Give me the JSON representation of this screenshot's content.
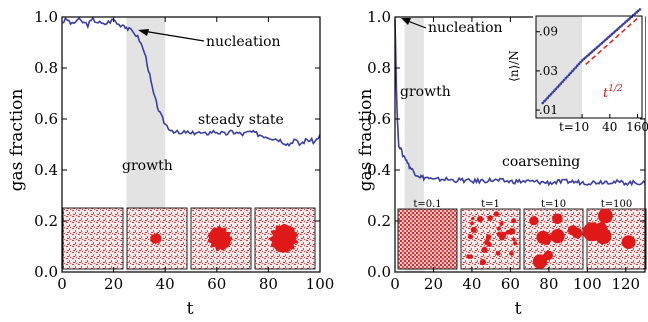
{
  "chart_data": [
    {
      "type": "line",
      "panel": "left",
      "xlabel": "t",
      "ylabel": "gas fraction",
      "xlim": [
        0,
        100
      ],
      "ylim": [
        0,
        1
      ],
      "xticks": [
        "0",
        "20",
        "40",
        "60",
        "80",
        "100"
      ],
      "yticks": [
        "0.0",
        "0.2",
        "0.4",
        "0.6",
        "0.8",
        "1.0"
      ],
      "shaded_region": [
        25,
        40
      ],
      "series": [
        {
          "name": "",
          "x": [
            0,
            2,
            4,
            6,
            8,
            10,
            12,
            14,
            16,
            18,
            20,
            22,
            24,
            25,
            26,
            28,
            30,
            32,
            33,
            34,
            35,
            36,
            37,
            38,
            39,
            40,
            42,
            44,
            46,
            48,
            50,
            52,
            55,
            58,
            60,
            63,
            66,
            70,
            73,
            76,
            80,
            84,
            88,
            90,
            92,
            95,
            98,
            100
          ],
          "y": [
            0.98,
            0.99,
            0.97,
            0.99,
            0.98,
            0.97,
            0.99,
            0.98,
            0.97,
            0.98,
            0.99,
            0.97,
            0.97,
            0.96,
            0.95,
            0.94,
            0.91,
            0.86,
            0.82,
            0.77,
            0.72,
            0.68,
            0.65,
            0.62,
            0.6,
            0.58,
            0.56,
            0.55,
            0.54,
            0.55,
            0.54,
            0.55,
            0.54,
            0.55,
            0.55,
            0.54,
            0.55,
            0.54,
            0.55,
            0.54,
            0.53,
            0.52,
            0.5,
            0.52,
            0.5,
            0.52,
            0.51,
            0.54
          ]
        }
      ],
      "annotations": {
        "nucleation": "nucleation",
        "growth": "growth",
        "steady": "steady state"
      },
      "snapshots": [
        {
          "label": "",
          "cluster": 0
        },
        {
          "label": "",
          "cluster": 0.18
        },
        {
          "label": "",
          "cluster": 0.38
        },
        {
          "label": "",
          "cluster": 0.45
        }
      ]
    },
    {
      "type": "line",
      "panel": "right",
      "xlabel": "t",
      "ylabel": "gas fraction",
      "xlim": [
        0,
        130
      ],
      "ylim": [
        0,
        1
      ],
      "xticks": [
        "0",
        "20",
        "40",
        "60",
        "80",
        "100",
        "120"
      ],
      "yticks": [
        "0.0",
        "0.2",
        "0.4",
        "0.6",
        "0.8",
        "1.0"
      ],
      "shaded_region": [
        5,
        15
      ],
      "series": [
        {
          "name": "",
          "x": [
            0,
            0.5,
            1,
            1.5,
            2,
            3,
            4,
            5,
            6,
            7,
            8,
            9,
            10,
            11,
            12,
            13,
            14,
            15,
            17,
            20,
            25,
            30,
            35,
            40,
            50,
            60,
            70,
            80,
            90,
            100,
            110,
            120,
            130
          ],
          "y": [
            1.0,
            0.8,
            0.65,
            0.55,
            0.5,
            0.48,
            0.46,
            0.45,
            0.44,
            0.42,
            0.41,
            0.4,
            0.39,
            0.385,
            0.38,
            0.375,
            0.372,
            0.37,
            0.37,
            0.36,
            0.365,
            0.36,
            0.36,
            0.355,
            0.36,
            0.355,
            0.355,
            0.35,
            0.355,
            0.35,
            0.355,
            0.35,
            0.35
          ]
        }
      ],
      "annotations": {
        "nucleation": "nucleation",
        "growth": "growth",
        "coarsening": "coarsening"
      },
      "snapshots": [
        {
          "label": "t=0.1"
        },
        {
          "label": "t=1"
        },
        {
          "label": "t=10"
        },
        {
          "label": "t=100"
        }
      ],
      "inset": {
        "type": "scatter",
        "ylabel": "⟨n⟩/N",
        "xscale": "log",
        "yscale": "log",
        "xlim": [
          1,
          200
        ],
        "ylim": [
          0.008,
          0.14
        ],
        "xticks": [
          "t=10",
          "40",
          "160"
        ],
        "yticks": [
          ".01",
          ".03",
          ".09"
        ],
        "fit_label_base": "t",
        "fit_label_exp": "1/2",
        "shaded_region": [
          1,
          10
        ],
        "colors": {
          "data": "#3b3fa0",
          "fit": "#e02020"
        }
      }
    }
  ]
}
